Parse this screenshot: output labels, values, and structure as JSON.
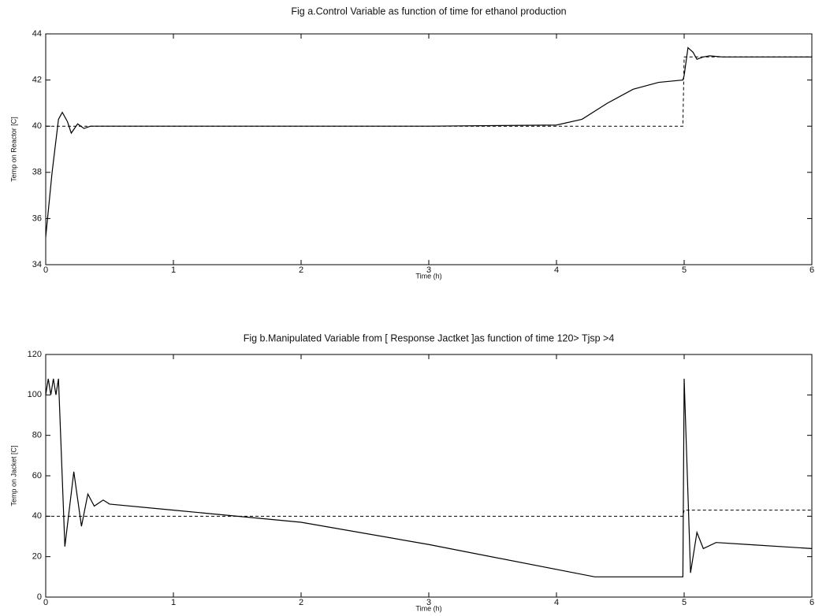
{
  "chart_data": [
    {
      "type": "line",
      "title": "Fig a.Control Variable as function of time for ethanol production",
      "x_label": "Time (h)",
      "y_label": "Temp on Reactor  [C]",
      "x": [
        0,
        0.05,
        0.1,
        0.13,
        0.17,
        0.2,
        0.25,
        0.3,
        0.35,
        0.4,
        0.5,
        1,
        2,
        3,
        4,
        4.2,
        4.4,
        4.6,
        4.8,
        4.99,
        5.0,
        5.03,
        5.07,
        5.1,
        5.15,
        5.2,
        5.3,
        6
      ],
      "series": [
        {
          "color": "#000000",
          "line_style": "solid",
          "values": [
            35.2,
            38,
            40.3,
            40.6,
            40.2,
            39.7,
            40.1,
            39.9,
            40.0,
            40.0,
            40,
            40,
            40,
            40,
            40.05,
            40.3,
            41.0,
            41.6,
            41.9,
            42.0,
            42.2,
            43.4,
            43.2,
            42.9,
            43.0,
            43.05,
            43.0,
            43.0
          ]
        },
        {
          "color": "#000000",
          "line_style": "dashed",
          "values": [
            40,
            40,
            40,
            40,
            40,
            40,
            40,
            40,
            40,
            40,
            40,
            40,
            40,
            40,
            40,
            40,
            40,
            40,
            40,
            40,
            43,
            43,
            43,
            43,
            43,
            43,
            43,
            43
          ]
        }
      ],
      "xlim": [
        0,
        6
      ],
      "xticks": [
        0,
        1,
        2,
        3,
        4,
        5,
        6
      ],
      "ylim": [
        34,
        44
      ],
      "yticks": [
        34,
        36,
        38,
        40,
        42,
        44
      ],
      "grid": false
    },
    {
      "type": "line",
      "title": "Fig b.Manipulated Variable from [ Response Jactket ]as function of time 120> Tjsp >4",
      "x_label": "Time (h)",
      "y_label": "Temp on Jacket  [C]",
      "x": [
        0,
        0.02,
        0.04,
        0.06,
        0.08,
        0.1,
        0.15,
        0.22,
        0.28,
        0.33,
        0.38,
        0.45,
        0.5,
        1,
        2,
        3,
        4.3,
        4.99,
        5.0,
        5.05,
        5.1,
        5.15,
        5.25,
        5.5,
        6
      ],
      "series": [
        {
          "color": "#000000",
          "line_style": "solid",
          "values": [
            100,
            108,
            100,
            108,
            100,
            108,
            25,
            62,
            35,
            51,
            45,
            48,
            46,
            43,
            37,
            26,
            10,
            10,
            108,
            12,
            32,
            24,
            27,
            26,
            24
          ]
        },
        {
          "color": "#000000",
          "line_style": "dashed",
          "values": [
            40,
            40,
            40,
            40,
            40,
            40,
            40,
            40,
            40,
            40,
            40,
            40,
            40,
            40,
            40,
            40,
            40,
            40,
            43,
            43,
            43,
            43,
            43,
            43,
            43
          ]
        }
      ],
      "xlim": [
        0,
        6
      ],
      "xticks": [
        0,
        1,
        2,
        3,
        4,
        5,
        6
      ],
      "ylim": [
        0,
        120
      ],
      "yticks": [
        0,
        20,
        40,
        60,
        80,
        100,
        120
      ],
      "grid": false
    }
  ]
}
